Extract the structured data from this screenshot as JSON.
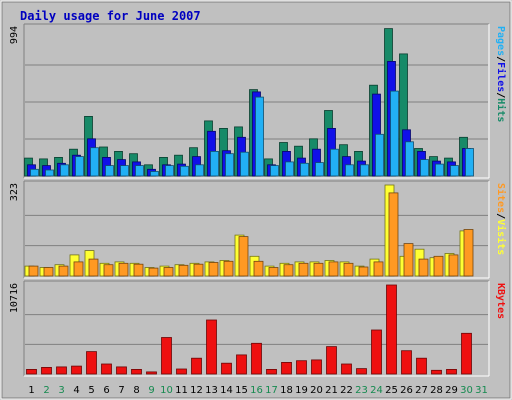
{
  "chart_data": {
    "type": "bar",
    "title": "Daily usage for June 2007",
    "days": [
      "1",
      "2",
      "3",
      "4",
      "5",
      "6",
      "7",
      "8",
      "9",
      "10",
      "11",
      "12",
      "13",
      "14",
      "15",
      "16",
      "17",
      "18",
      "19",
      "20",
      "21",
      "22",
      "23",
      "24",
      "25",
      "26",
      "27",
      "28",
      "29",
      "30",
      "31"
    ],
    "weekend_days": [
      "2",
      "3",
      "9",
      "10",
      "16",
      "17",
      "23",
      "24",
      "30",
      "31"
    ],
    "panels": [
      {
        "id": "hits_files_pages",
        "max_label": "994",
        "ymax": 994,
        "right_label": [
          "Pages",
          "Files",
          "Hits"
        ],
        "right_label_sep": "/",
        "series": [
          {
            "name": "Hits",
            "values": [
              120,
              115,
              125,
              180,
              400,
              195,
              165,
              150,
              75,
              125,
              140,
              190,
              370,
              320,
              330,
              580,
              115,
              225,
              200,
              250,
              440,
              210,
              165,
              610,
              990,
              820,
              185,
              130,
              120,
              260,
              0
            ]
          },
          {
            "name": "Files",
            "values": [
              75,
              70,
              85,
              140,
              250,
              125,
              110,
              95,
              45,
              75,
              80,
              130,
              300,
              170,
              260,
              565,
              75,
              165,
              120,
              180,
              320,
              130,
              100,
              550,
              770,
              310,
              165,
              100,
              95,
              185,
              0
            ]
          },
          {
            "name": "Pages",
            "values": [
              45,
              40,
              75,
              130,
              190,
              70,
              70,
              70,
              30,
              70,
              65,
              75,
              165,
              150,
              160,
              530,
              70,
              95,
              85,
              90,
              180,
              75,
              75,
              280,
              570,
              230,
              110,
              80,
              70,
              185,
              0
            ]
          }
        ]
      },
      {
        "id": "sites_visits",
        "max_label": "323",
        "ymax": 323,
        "right_label": [
          "Sites",
          "Visits"
        ],
        "right_label_sep": "/",
        "series": [
          {
            "name": "Visits",
            "values": [
              35,
              30,
              40,
              75,
              90,
              45,
              50,
              45,
              30,
              35,
              40,
              45,
              50,
              55,
              145,
              70,
              35,
              45,
              50,
              50,
              55,
              50,
              35,
              60,
              323,
              70,
              95,
              65,
              80,
              160,
              0
            ]
          },
          {
            "name": "Sites",
            "values": [
              35,
              30,
              35,
              50,
              60,
              40,
              45,
              42,
              28,
              30,
              38,
              42,
              48,
              52,
              140,
              52,
              30,
              40,
              45,
              45,
              50,
              45,
              32,
              50,
              295,
              115,
              60,
              70,
              75,
              165,
              0
            ]
          }
        ]
      },
      {
        "id": "kbytes",
        "max_label": "10716",
        "ymax": 10716,
        "right_label": [
          "KBytes"
        ],
        "right_label_sep": "",
        "series": [
          {
            "name": "KBytes",
            "values": [
              550,
              800,
              850,
              950,
              2700,
              1200,
              850,
              550,
              250,
              4400,
              600,
              1900,
              6500,
              1300,
              2300,
              3700,
              550,
              1400,
              1600,
              1700,
              3300,
              1200,
              650,
              5300,
              10716,
              2800,
              1900,
              450,
              550,
              4900,
              0
            ]
          }
        ]
      }
    ],
    "colors": {
      "hits": "#178a68",
      "files": "#1010e8",
      "pages": "#22b0f4",
      "visits": "#ffff33",
      "sites": "#ff9922",
      "kbytes": "#ee1010",
      "title": "#0000c0",
      "weekday_label": "#000000",
      "weekend_label": "#168a50"
    }
  }
}
